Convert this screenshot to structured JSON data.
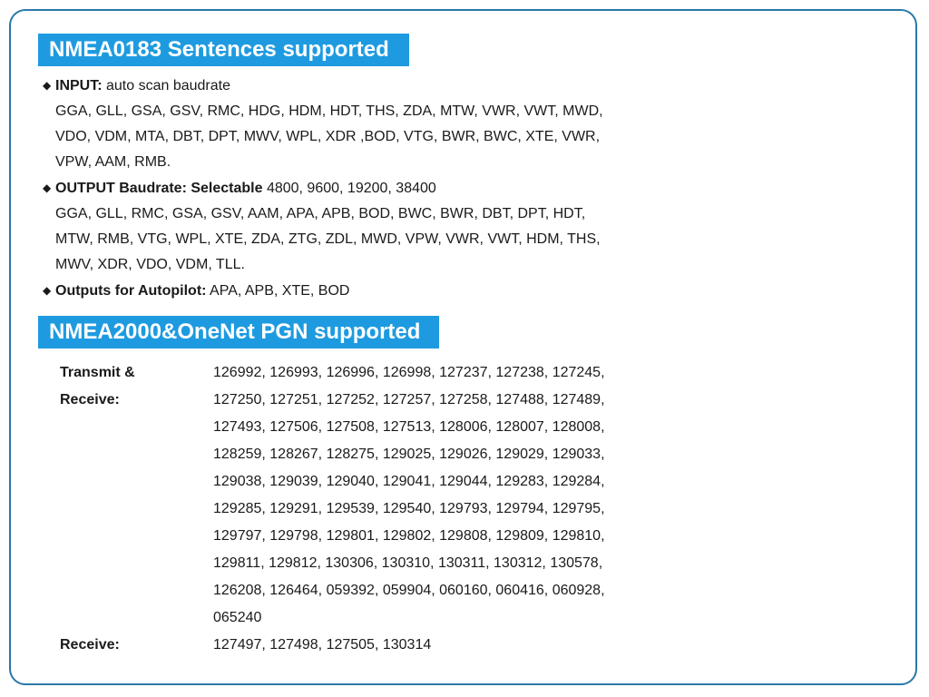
{
  "nmea0183": {
    "header": "NMEA0183 Sentences supported",
    "input": {
      "label": "INPUT:",
      "text": " auto scan baudrate",
      "lines": [
        "GGA, GLL, GSA, GSV, RMC, HDG, HDM, HDT, THS, ZDA, MTW, VWR, VWT, MWD,",
        "VDO, VDM, MTA, DBT, DPT, MWV, WPL, XDR ,BOD, VTG, BWR, BWC, XTE, VWR,",
        "VPW, AAM, RMB."
      ]
    },
    "output": {
      "label": "OUTPUT Baudrate: Selectable",
      "text": " 4800, 9600, 19200, 38400",
      "lines": [
        "GGA, GLL, RMC, GSA, GSV, AAM, APA, APB, BOD, BWC, BWR, DBT, DPT, HDT,",
        "MTW, RMB, VTG, WPL, XTE, ZDA, ZTG, ZDL, MWD, VPW, VWR, VWT, HDM, THS,",
        "MWV, XDR, VDO, VDM, TLL."
      ]
    },
    "autopilot": {
      "label": "Outputs for Autopilot:",
      "text": " APA, APB, XTE, BOD"
    }
  },
  "nmea2000": {
    "header": "NMEA2000&OneNet PGN supported",
    "transmit_receive": {
      "label_line1": "Transmit &",
      "label_line2": "Receive:",
      "lines": [
        "126992, 126993, 126996, 126998, 127237, 127238, 127245,",
        "127250, 127251,  127252, 127257, 127258, 127488, 127489,",
        "127493, 127506, 127508, 127513, 128006, 128007, 128008,",
        "128259, 128267, 128275, 129025, 129026, 129029, 129033,",
        "129038, 129039, 129040, 129041, 129044, 129283, 129284,",
        "129285, 129291, 129539, 129540, 129793, 129794, 129795,",
        "129797, 129798, 129801, 129802, 129808, 129809, 129810,",
        "129811, 129812, 130306, 130310, 130311, 130312, 130578,",
        "126208, 126464, 059392, 059904, 060160, 060416, 060928,",
        "065240"
      ]
    },
    "receive": {
      "label": "Receive:",
      "text": "127497, 127498, 127505, 130314"
    }
  },
  "colors": {
    "header_bg": "#1e9be0",
    "border": "#2a78a8"
  }
}
